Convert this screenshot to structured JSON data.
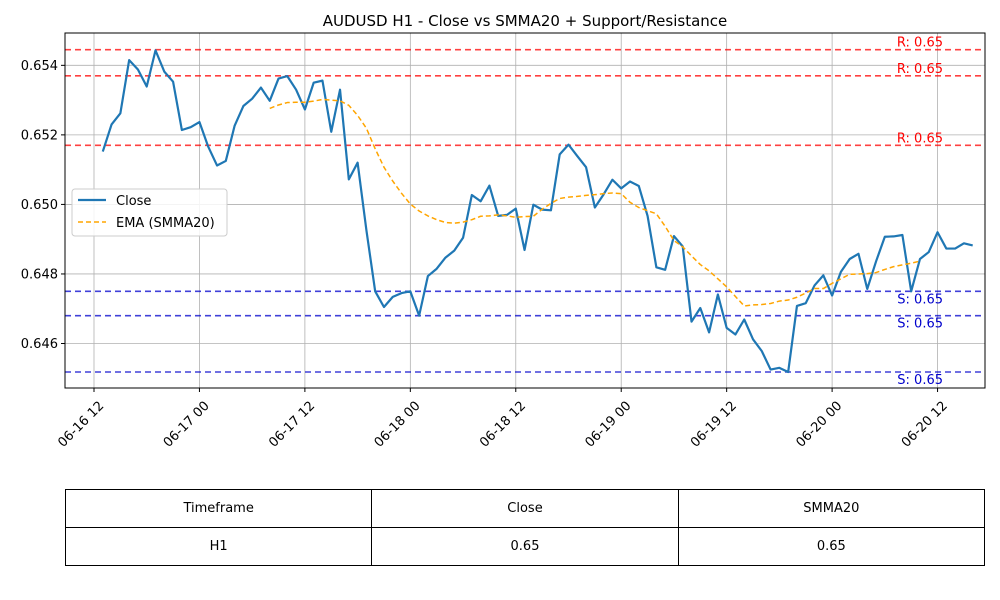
{
  "chart_data": {
    "type": "line",
    "title": "AUDUSD H1 - Close vs SMMA20 + Support/Resistance",
    "xlabel": "",
    "ylabel": "",
    "x_start": "2025-06-16 13:00",
    "x_step_hours": 1,
    "xlim": [
      "2025-06-16 08:42",
      "2025-06-20 17:24"
    ],
    "ylim": [
      0.64472,
      0.65493
    ],
    "grid": true,
    "legend_position": "center-left",
    "x_tick_labels": [
      "06-16 12",
      "06-17 00",
      "06-17 12",
      "06-18 00",
      "06-18 12",
      "06-19 00",
      "06-19 12",
      "06-20 00",
      "06-20 12"
    ],
    "y_tick_labels": [
      "0.646",
      "0.648",
      "0.650",
      "0.652",
      "0.654"
    ],
    "y_ticks": [
      0.646,
      0.648,
      0.65,
      0.652,
      0.654
    ],
    "series": [
      {
        "name": "Close",
        "color": "#1f77b4",
        "style": "solid",
        "values": [
          0.65152,
          0.6523,
          0.65262,
          0.65415,
          0.65388,
          0.65339,
          0.65443,
          0.65382,
          0.65353,
          0.65214,
          0.65222,
          0.65237,
          0.65166,
          0.65112,
          0.65125,
          0.65226,
          0.65283,
          0.65304,
          0.65336,
          0.65298,
          0.65362,
          0.65369,
          0.6533,
          0.65273,
          0.6535,
          0.65356,
          0.65209,
          0.6533,
          0.65072,
          0.6512,
          0.64926,
          0.6475,
          0.64705,
          0.64734,
          0.64745,
          0.6475,
          0.6468,
          0.64794,
          0.64815,
          0.64847,
          0.64867,
          0.64904,
          0.65027,
          0.65009,
          0.65054,
          0.64967,
          0.6497,
          0.64988,
          0.64869,
          0.64999,
          0.64985,
          0.64983,
          0.65144,
          0.65172,
          0.65139,
          0.65107,
          0.64991,
          0.65029,
          0.65071,
          0.65046,
          0.65066,
          0.65053,
          0.64967,
          0.64819,
          0.64812,
          0.64909,
          0.64879,
          0.64663,
          0.64702,
          0.64632,
          0.64741,
          0.64645,
          0.64626,
          0.64669,
          0.64612,
          0.64578,
          0.64525,
          0.6453,
          0.64518,
          0.64708,
          0.64716,
          0.64767,
          0.64796,
          0.64738,
          0.64806,
          0.64843,
          0.64858,
          0.64757,
          0.64836,
          0.64907,
          0.64908,
          0.64912,
          0.6475,
          0.64843,
          0.64863,
          0.6492,
          0.64873,
          0.64873,
          0.64888,
          0.64882
        ]
      },
      {
        "name": "EMA (SMMA20)",
        "color": "#ffa500",
        "style": "dashed",
        "start_index": 19,
        "values": [
          0.65276,
          0.65286,
          0.65293,
          0.65294,
          0.65294,
          0.65297,
          0.65302,
          0.653,
          0.65298,
          0.65285,
          0.65256,
          0.65219,
          0.6516,
          0.65107,
          0.65067,
          0.65032,
          0.65001,
          0.64981,
          0.64967,
          0.64956,
          0.64948,
          0.64946,
          0.64949,
          0.64956,
          0.64966,
          0.64967,
          0.6497,
          0.64967,
          0.64963,
          0.64965,
          0.64966,
          0.64986,
          0.65003,
          0.65017,
          0.65021,
          0.65023,
          0.65026,
          0.65028,
          0.65031,
          0.65033,
          0.65031,
          0.65006,
          0.64991,
          0.64982,
          0.64973,
          0.64937,
          0.64896,
          0.64878,
          0.64852,
          0.64827,
          0.64809,
          0.64786,
          0.64763,
          0.64735,
          0.64708,
          0.64711,
          0.64712,
          0.64715,
          0.64722,
          0.64725,
          0.64733,
          0.64745,
          0.64758,
          0.64758,
          0.64773,
          0.64786,
          0.64799,
          0.648,
          0.64801,
          0.64804,
          0.64813,
          0.64821,
          0.64826,
          0.64831,
          0.64837
        ]
      }
    ],
    "resistance_lines": [
      0.65445,
      0.6537,
      0.6517
    ],
    "support_lines": [
      0.6475,
      0.6468,
      0.64518
    ],
    "resistance_label": "R: 0.65",
    "support_label": "S: 0.65",
    "resistance_color": "#ff0000",
    "support_color": "#0000cc",
    "table": {
      "headers": [
        "Timeframe",
        "Close",
        "SMMA20"
      ],
      "rows": [
        [
          "H1",
          "0.65",
          "0.65"
        ]
      ]
    }
  }
}
